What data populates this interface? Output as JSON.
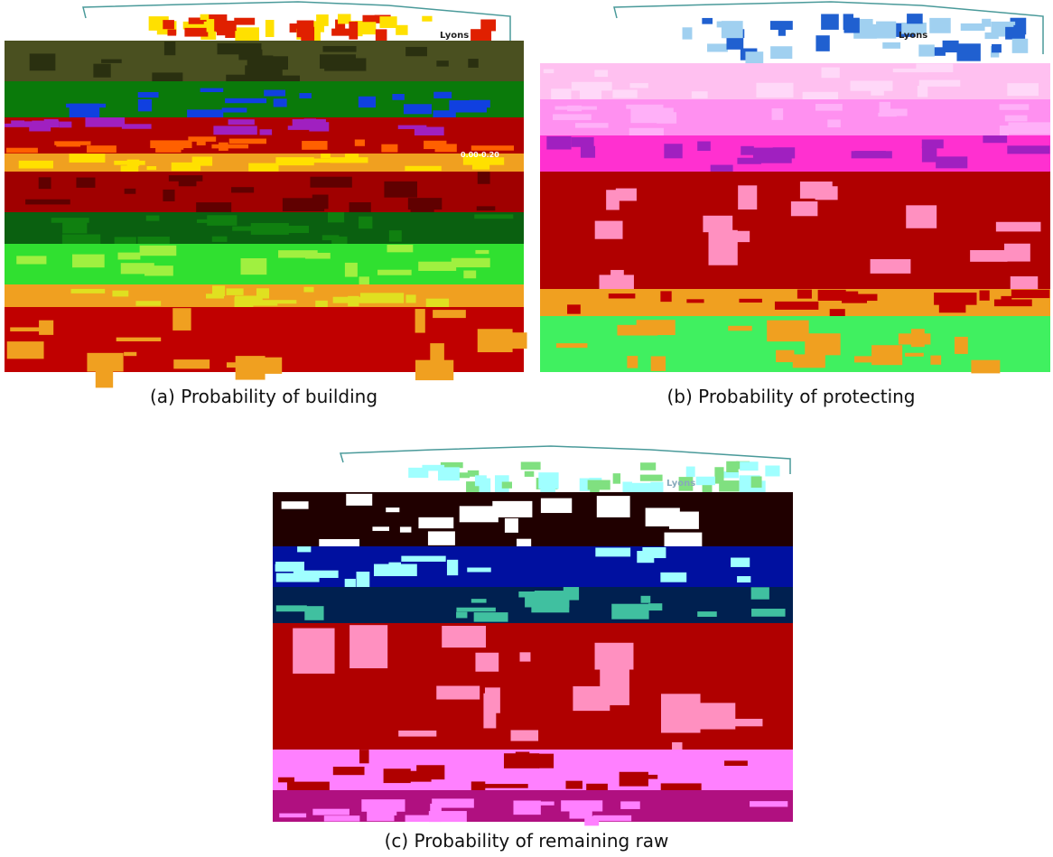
{
  "figure": {
    "panels": [
      {
        "caption": "(a) Probability of building",
        "map_labels": [
          "Lyons",
          "0.00-0.20"
        ]
      },
      {
        "caption": "(b) Probability of protecting",
        "map_labels": [
          "Lyons"
        ]
      },
      {
        "caption": "(c) Probability of remaining raw",
        "map_labels": [
          "Lyons"
        ]
      }
    ]
  }
}
